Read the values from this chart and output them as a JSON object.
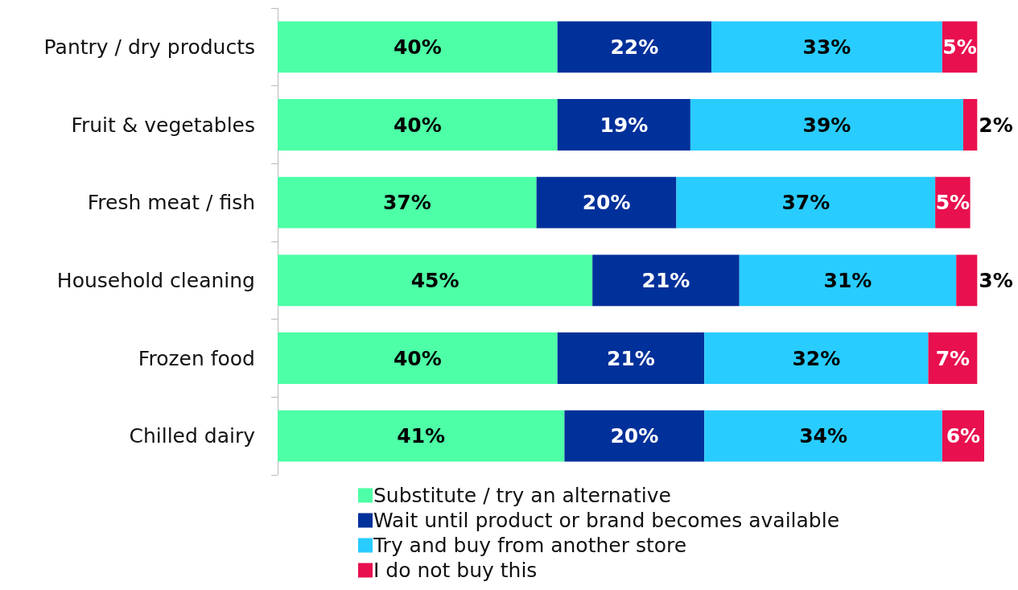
{
  "chart_data": {
    "type": "bar",
    "orientation": "horizontal",
    "stacked": true,
    "categories": [
      "Pantry / dry products",
      "Fruit & vegetables",
      "Fresh meat / fish",
      "Household cleaning",
      "Frozen food",
      "Chilled dairy"
    ],
    "xlim": [
      0,
      101
    ],
    "tick_labels": "y",
    "legend": "bottom",
    "series": [
      {
        "name": "Substitute / try an alternative",
        "color": "#4dffa6",
        "values": [
          40,
          40,
          37,
          45,
          40,
          41
        ],
        "value_labels": [
          "40%",
          "40%",
          "37%",
          "45%",
          "40%",
          "41%"
        ]
      },
      {
        "name": "Wait until product or brand becomes available",
        "color": "#00309a",
        "values": [
          22,
          19,
          20,
          21,
          21,
          20
        ],
        "value_labels": [
          "22%",
          "19%",
          "20%",
          "21%",
          "21%",
          "20%"
        ]
      },
      {
        "name": "Try and buy from another store",
        "color": "#29ccff",
        "values": [
          33,
          39,
          37,
          31,
          32,
          34
        ],
        "value_labels": [
          "33%",
          "39%",
          "37%",
          "31%",
          "32%",
          "34%"
        ]
      },
      {
        "name": "I do not buy this",
        "color": "#e8104f",
        "values": [
          5,
          2,
          5,
          3,
          7,
          6
        ],
        "value_labels": [
          "5%",
          "2%",
          "5%",
          "3%",
          "7%",
          "6%"
        ]
      }
    ]
  }
}
